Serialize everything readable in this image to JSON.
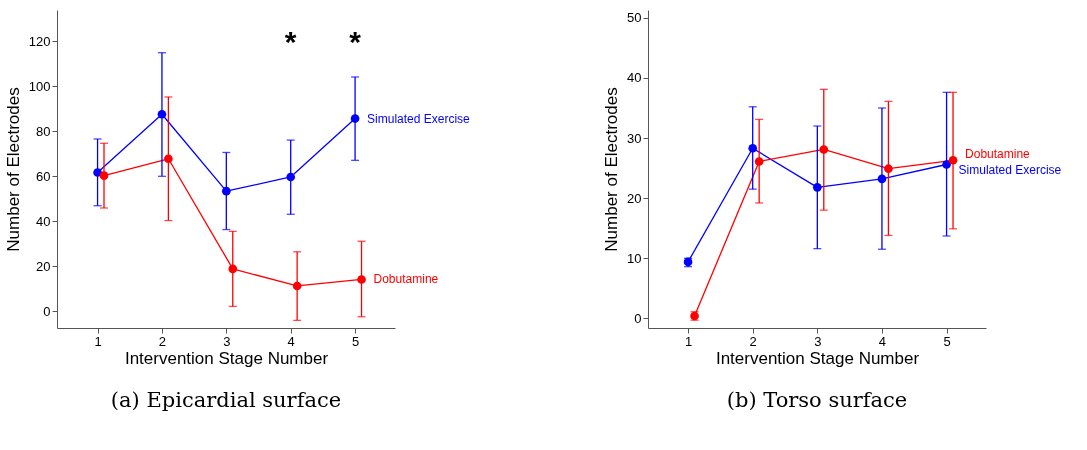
{
  "chart_data": [
    {
      "type": "line",
      "title": "(a) Epicardial surface",
      "xlabel": "Intervention Stage Number",
      "ylabel": "Number of Electrodes",
      "xlim": [
        0.37,
        5.62
      ],
      "xticks": [
        1,
        2,
        3,
        4,
        5
      ],
      "ylim": [
        -7.5,
        134
      ],
      "yticks": [
        0,
        20,
        40,
        60,
        80,
        100,
        120
      ],
      "grid": false,
      "legend": false,
      "marker": "circle",
      "line_style": "solid",
      "annotations": [
        "*",
        "*"
      ],
      "series": [
        {
          "name": "Simulated Exercise",
          "color": "#0000ff",
          "x": [
            1,
            2,
            3,
            4,
            5
          ],
          "values": [
            61.7,
            87.6,
            53.4,
            59.7,
            85.7
          ],
          "errors": [
            [
              46.9,
              76.6
            ],
            [
              60,
              115
            ],
            [
              36.3,
              70.6
            ],
            [
              43.1,
              76.1
            ],
            [
              67.1,
              104.2
            ]
          ]
        },
        {
          "name": "Dobutamine",
          "color": "#ff0000",
          "x": [
            1.1,
            2.1,
            3.1,
            4.1,
            5.1
          ],
          "values": [
            60.3,
            67.8,
            18.8,
            11.2,
            14.1
          ],
          "errors": [
            [
              45.9,
              74.7
            ],
            [
              40.3,
              95.3
            ],
            [
              2.1,
              35.5
            ],
            [
              -4.1,
              26.4
            ],
            [
              -2.5,
              31.1
            ]
          ]
        }
      ]
    },
    {
      "type": "line",
      "title": "(b) Torso surface",
      "xlabel": "Intervention Stage Number",
      "ylabel": "Number of Electrodes",
      "xlim": [
        0.38,
        5.61
      ],
      "xticks": [
        1,
        2,
        3,
        4,
        5
      ],
      "ylim": [
        -1.6,
        51.3
      ],
      "yticks": [
        0,
        10,
        20,
        30,
        40,
        50
      ],
      "grid": false,
      "legend": false,
      "marker": "circle",
      "line_style": "solid",
      "series": [
        {
          "name": "Simulated Exercise",
          "color": "#0000ff",
          "x": [
            1,
            2,
            3,
            4,
            5
          ],
          "values": [
            9.4,
            28.3,
            21.8,
            23.2,
            25.6
          ],
          "errors": [
            [
              8.6,
              10.0
            ],
            [
              21.5,
              35.2
            ],
            [
              11.6,
              32.0
            ],
            [
              11.5,
              35.0
            ],
            [
              13.7,
              37.6
            ]
          ]
        },
        {
          "name": "Dobutamine",
          "color": "#ff0000",
          "x": [
            1.1,
            2.1,
            3.1,
            4.1,
            5.1
          ],
          "values": [
            0.4,
            26.1,
            28.1,
            24.9,
            26.3
          ],
          "errors": [
            [
              -0.3,
              1.1
            ],
            [
              19.2,
              33.1
            ],
            [
              18.0,
              38.1
            ],
            [
              13.8,
              36.1
            ],
            [
              14.9,
              37.6
            ]
          ]
        }
      ]
    }
  ]
}
